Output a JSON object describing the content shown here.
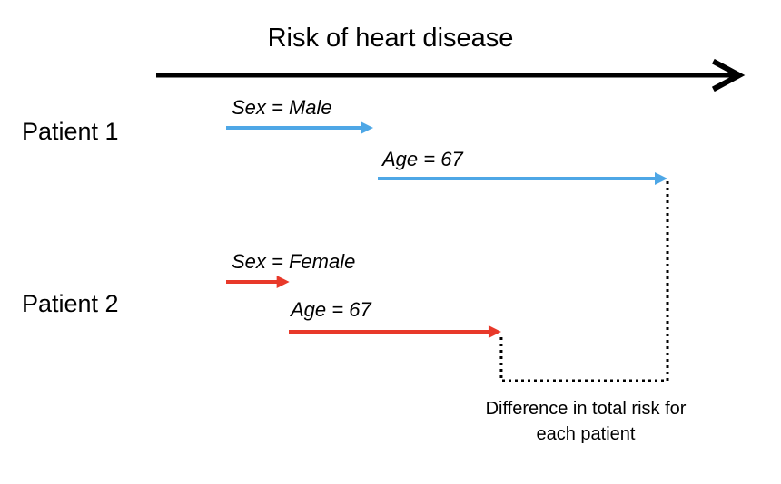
{
  "axis": {
    "title": "Risk of heart disease"
  },
  "patients": [
    {
      "label": "Patient 1",
      "color": "#4ea7e6",
      "features": [
        {
          "label": "Sex = Male",
          "from": 0,
          "to": 1
        },
        {
          "label": "Age = 67",
          "from": 1,
          "to": 3
        }
      ]
    },
    {
      "label": "Patient 2",
      "color": "#e8392a",
      "features": [
        {
          "label": "Sex = Female",
          "from": 0,
          "to": 0.43
        },
        {
          "label": "Age = 67",
          "from": 0.43,
          "to": 1.87
        }
      ]
    }
  ],
  "difference": {
    "label": "Difference in total risk for each patient"
  }
}
